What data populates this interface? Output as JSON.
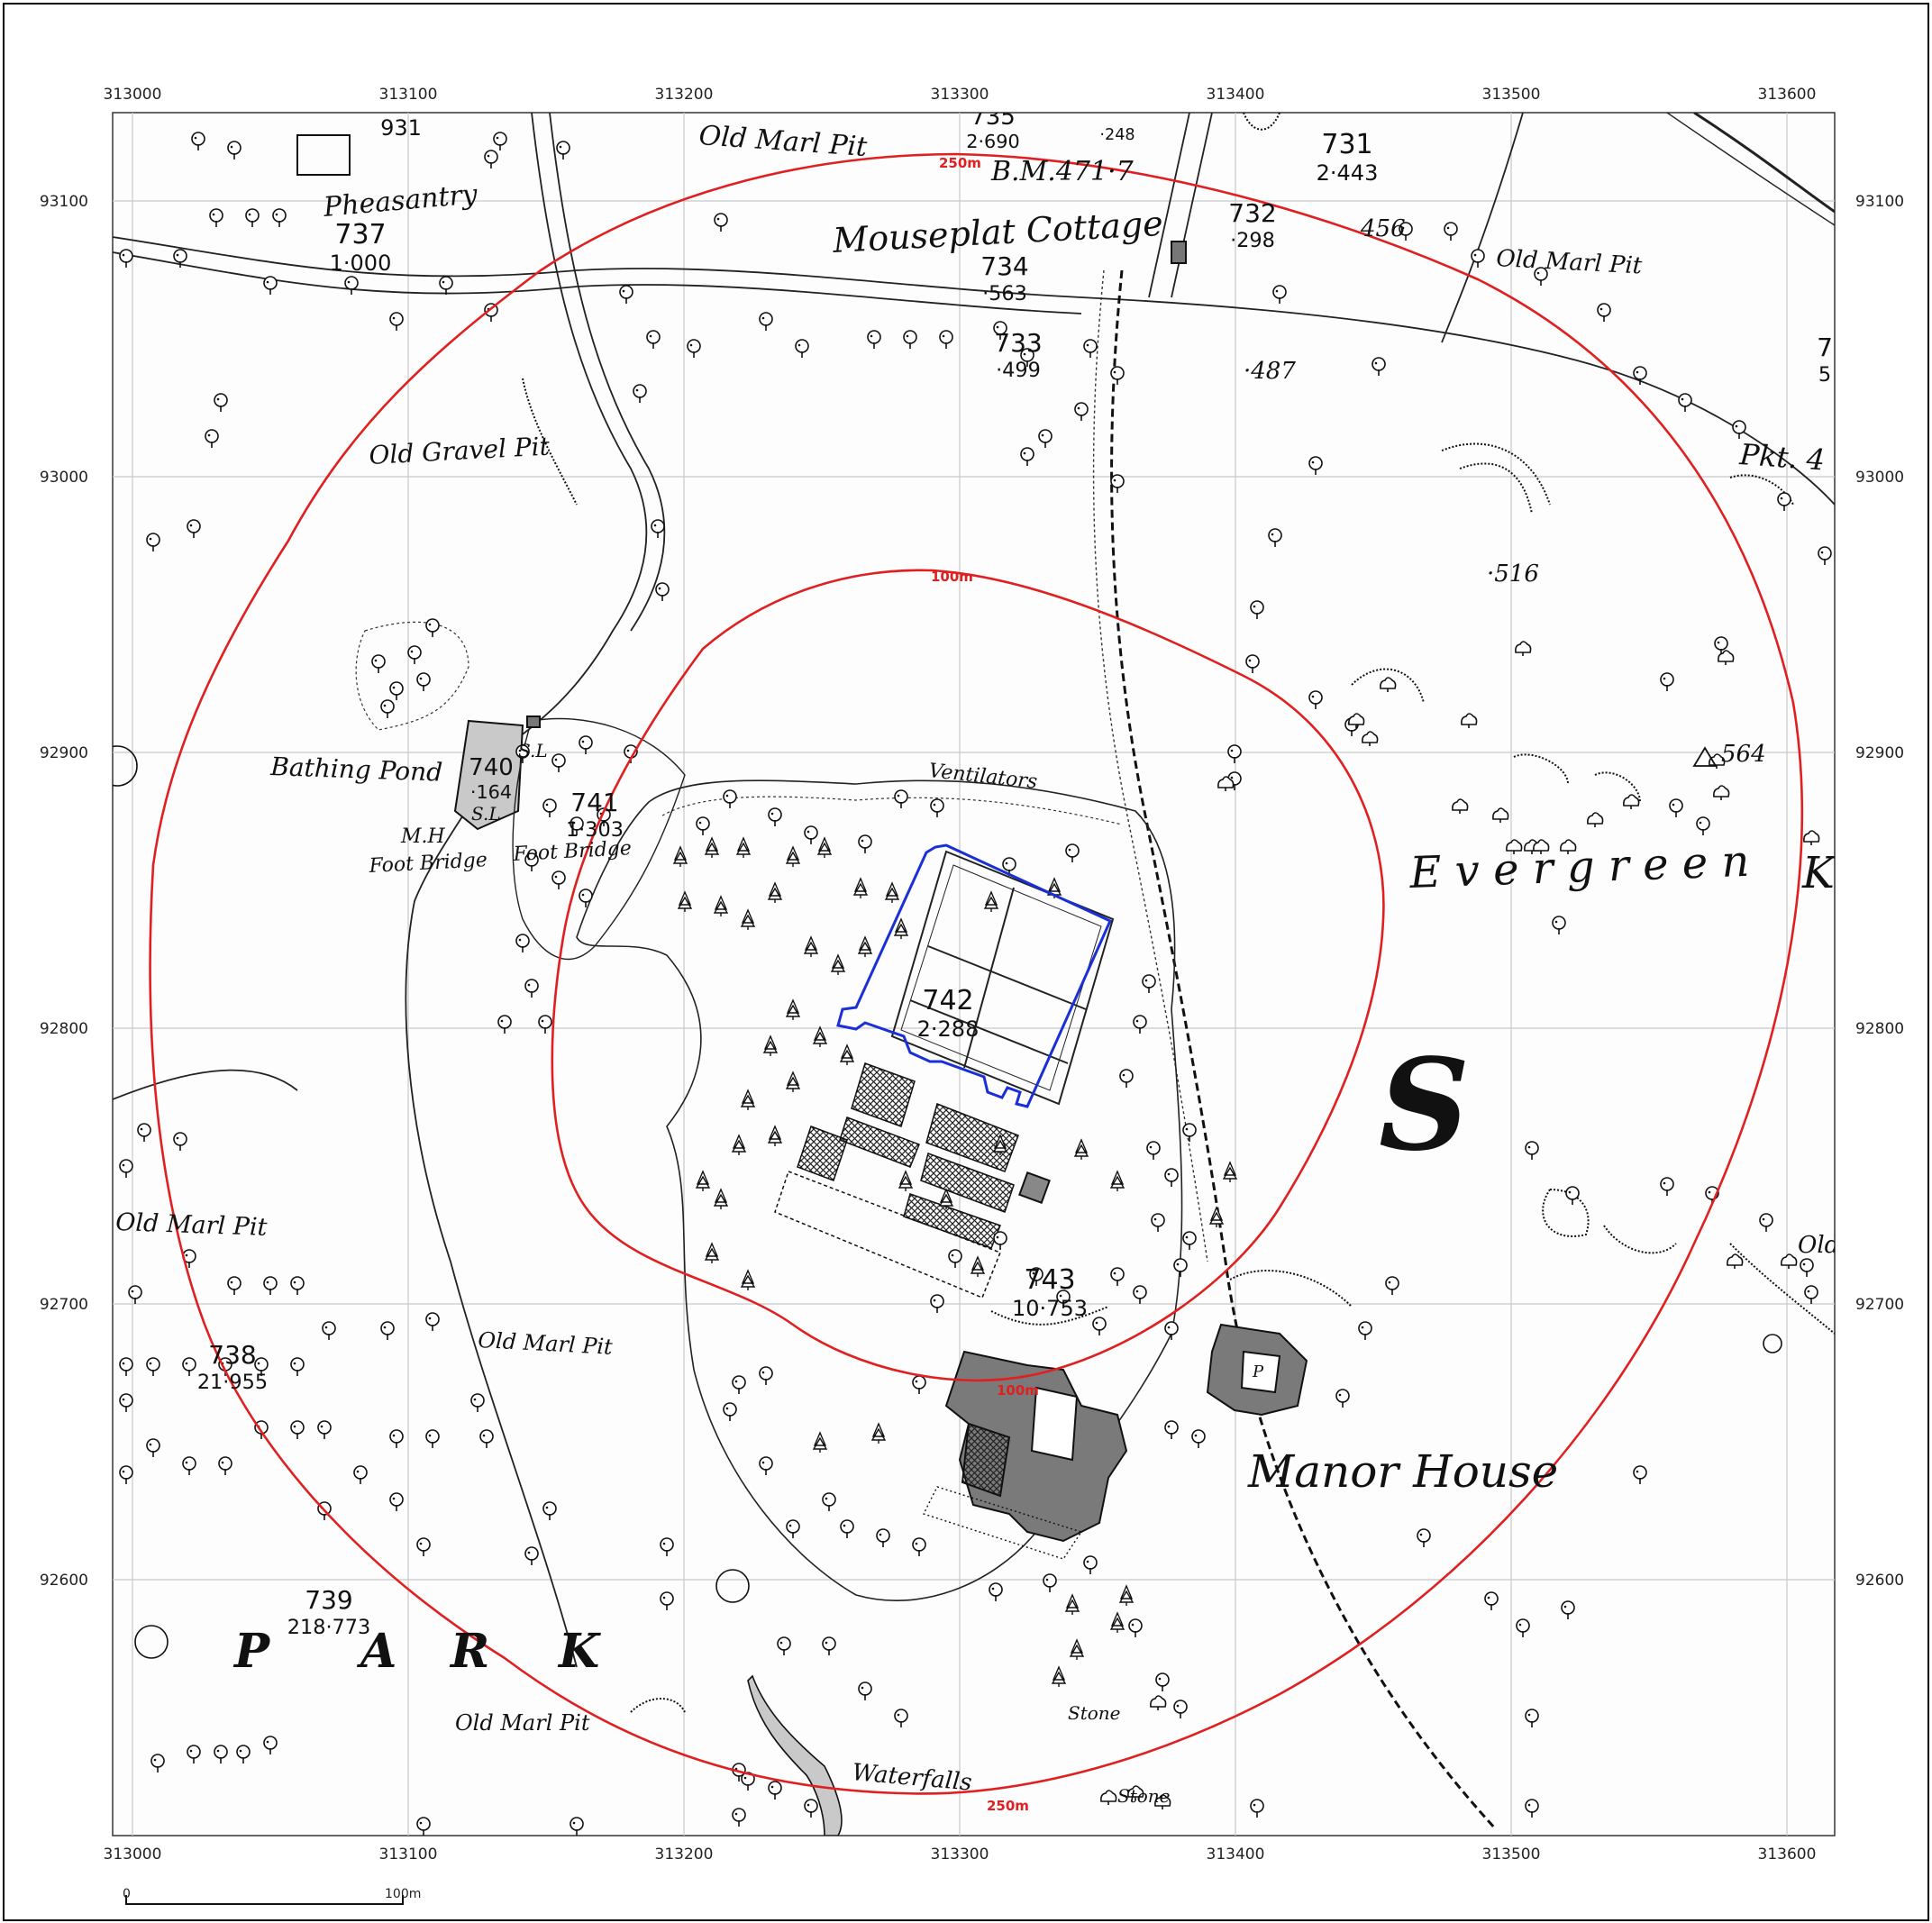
{
  "map": {
    "x_ticks": [
      "313000",
      "313100",
      "313200",
      "313300",
      "313400",
      "313500",
      "313600"
    ],
    "y_ticks": [
      "93100",
      "93000",
      "92900",
      "92800",
      "92700",
      "92600"
    ],
    "buffer_labels": {
      "inner": "100m",
      "outer": "250m"
    },
    "scale_bar": {
      "start": "0",
      "end": "100m"
    },
    "colors": {
      "buffer": "#e02020",
      "site_boundary": "#1a2fd6",
      "grid": "#c8c8c8",
      "ink": "#111111"
    },
    "place_labels": [
      {
        "id": "pheasantry",
        "text": "Pheasantry"
      },
      {
        "id": "old-marl-pit-n",
        "text": "Old Marl Pit"
      },
      {
        "id": "mouseplat-cottage",
        "text": "Mouseplat Cottage"
      },
      {
        "id": "old-marl-pit-ne",
        "text": "Old Marl Pit"
      },
      {
        "id": "old-gravel-pit",
        "text": "Old Gravel Pit"
      },
      {
        "id": "bathing-pond",
        "text": "Bathing Pond"
      },
      {
        "id": "mh",
        "text": "M.H"
      },
      {
        "id": "foot-bridge-1",
        "text": "Foot Bridge"
      },
      {
        "id": "foot-bridge-2",
        "text": "Foot Bridge"
      },
      {
        "id": "ventilators",
        "text": "Ventilators"
      },
      {
        "id": "evergreen",
        "text": "E v e r g r e e n"
      },
      {
        "id": "big-s",
        "text": "S"
      },
      {
        "id": "old-marl-pit-w",
        "text": "Old Marl Pit"
      },
      {
        "id": "old-marl-pit-c",
        "text": "Old Marl Pit"
      },
      {
        "id": "manor-house",
        "text": "Manor House"
      },
      {
        "id": "park-p",
        "text": "P"
      },
      {
        "id": "park-a",
        "text": "A"
      },
      {
        "id": "park-r",
        "text": "R"
      },
      {
        "id": "park-k",
        "text": "K"
      },
      {
        "id": "old-marl-pit-s",
        "text": "Old Marl Pit"
      },
      {
        "id": "waterfalls",
        "text": "Waterfalls"
      },
      {
        "id": "stone-1",
        "text": "Stone"
      },
      {
        "id": "stone-2",
        "text": "Stone"
      },
      {
        "id": "bm",
        "text": "B.M.471·7"
      },
      {
        "id": "sl-1",
        "text": "S.L"
      },
      {
        "id": "sl-2",
        "text": "S.L"
      },
      {
        "id": "pkt",
        "text": "Pkt. 4"
      },
      {
        "id": "old-e",
        "text": "Old"
      },
      {
        "id": "p-building",
        "text": "P"
      },
      {
        "id": "ever-k",
        "text": "K"
      }
    ],
    "parcels": [
      {
        "id": "931",
        "number": "931",
        "area": ""
      },
      {
        "id": "735",
        "number": "735",
        "area": "2·690"
      },
      {
        "id": "248",
        "number": "",
        "area": "·248"
      },
      {
        "id": "731",
        "number": "731",
        "area": "2·443"
      },
      {
        "id": "737",
        "number": "737",
        "area": "1·000"
      },
      {
        "id": "732",
        "number": "732",
        "area": "·298"
      },
      {
        "id": "734",
        "number": "734",
        "area": "·563"
      },
      {
        "id": "733",
        "number": "733",
        "area": "·499"
      },
      {
        "id": "740",
        "number": "740",
        "area": "·164"
      },
      {
        "id": "741",
        "number": "741",
        "area": "1·303"
      },
      {
        "id": "742",
        "number": "742",
        "area": "2·288"
      },
      {
        "id": "743",
        "number": "743",
        "area": "10·753"
      },
      {
        "id": "738",
        "number": "738",
        "area": "21·955"
      },
      {
        "id": "739",
        "number": "739",
        "area": "218·773"
      },
      {
        "id": "7x",
        "number": "7",
        "area": "5"
      }
    ],
    "spot_heights": [
      {
        "id": "456",
        "text": "456"
      },
      {
        "id": "487",
        "text": "·487"
      },
      {
        "id": "516",
        "text": "·516"
      },
      {
        "id": "564",
        "text": "564"
      }
    ]
  }
}
